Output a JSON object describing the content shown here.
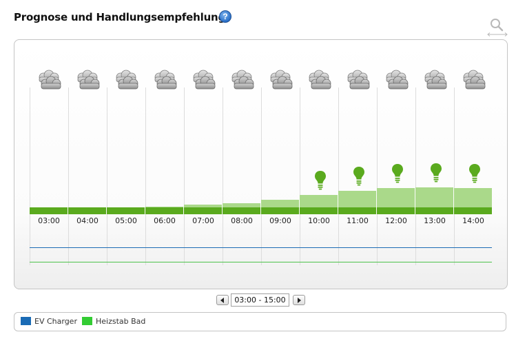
{
  "header": {
    "title": "Prognose und Handlungsempfehlung",
    "help_icon": "question-mark-icon",
    "zoom_icon": "zoom-reset-icon"
  },
  "chart": {
    "weather_icon": "cloudy-icon",
    "recommendation_icon": "lightbulb-icon",
    "hours": [
      "03:00",
      "04:00",
      "05:00",
      "06:00",
      "07:00",
      "08:00",
      "09:00",
      "10:00",
      "11:00",
      "12:00",
      "13:00",
      "14:00"
    ],
    "forecast_level": [
      0.0,
      0.0,
      0.0,
      0.02,
      0.08,
      0.14,
      0.25,
      0.4,
      0.55,
      0.64,
      0.67,
      0.64
    ],
    "recommendation": [
      false,
      false,
      false,
      false,
      false,
      false,
      false,
      true,
      true,
      true,
      true,
      true
    ],
    "colors": {
      "forecast_light": "#aad98a",
      "forecast_dark": "#5aaa1e",
      "ev_charger_line": "#1a6bb5",
      "heizstab_line": "#4cc24a"
    }
  },
  "navigation": {
    "prev_icon": "arrow-left-icon",
    "next_icon": "arrow-right-icon",
    "range": "03:00 - 15:00"
  },
  "legend": [
    {
      "label": "EV Charger",
      "color": "#1a6bb5"
    },
    {
      "label": "Heizstab Bad",
      "color": "#33cc33"
    }
  ]
}
